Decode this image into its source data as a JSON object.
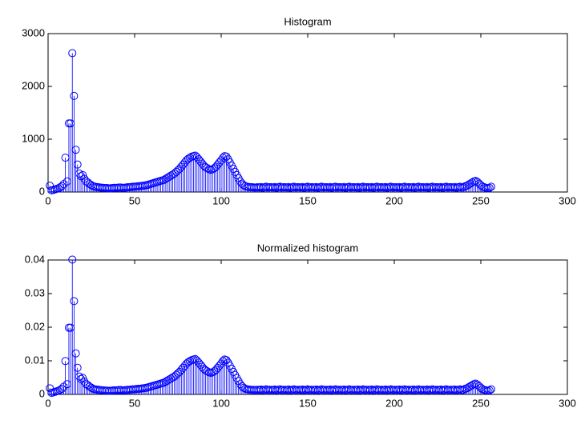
{
  "chart_data": [
    {
      "type": "stem",
      "title": "Histogram",
      "color": "#0000ff",
      "xlim": [
        0,
        300
      ],
      "ylim": [
        0,
        3000
      ],
      "xticks": [
        0,
        50,
        100,
        150,
        200,
        250,
        300
      ],
      "yticks": [
        0,
        1000,
        2000,
        3000
      ],
      "x": [
        1,
        2,
        3,
        4,
        5,
        6,
        7,
        8,
        9,
        10,
        11,
        12,
        13,
        14,
        15,
        16,
        17,
        18,
        19,
        20,
        21,
        22,
        23,
        24,
        25,
        26,
        27,
        28,
        29,
        30,
        31,
        32,
        33,
        34,
        35,
        36,
        37,
        38,
        39,
        40,
        41,
        42,
        43,
        44,
        45,
        46,
        47,
        48,
        49,
        50,
        51,
        52,
        53,
        54,
        55,
        56,
        57,
        58,
        59,
        60,
        61,
        62,
        63,
        64,
        65,
        66,
        67,
        68,
        69,
        70,
        71,
        72,
        73,
        74,
        75,
        76,
        77,
        78,
        79,
        80,
        81,
        82,
        83,
        84,
        85,
        86,
        87,
        88,
        89,
        90,
        91,
        92,
        93,
        94,
        95,
        96,
        97,
        98,
        99,
        100,
        101,
        102,
        103,
        104,
        105,
        106,
        107,
        108,
        109,
        110,
        111,
        112,
        113,
        114,
        115,
        116,
        117,
        118,
        119,
        120,
        121,
        122,
        123,
        124,
        125,
        126,
        127,
        128,
        129,
        130,
        131,
        132,
        133,
        134,
        135,
        136,
        137,
        138,
        139,
        140,
        141,
        142,
        143,
        144,
        145,
        146,
        147,
        148,
        149,
        150,
        151,
        152,
        153,
        154,
        155,
        156,
        157,
        158,
        159,
        160,
        161,
        162,
        163,
        164,
        165,
        166,
        167,
        168,
        169,
        170,
        171,
        172,
        173,
        174,
        175,
        176,
        177,
        178,
        179,
        180,
        181,
        182,
        183,
        184,
        185,
        186,
        187,
        188,
        189,
        190,
        191,
        192,
        193,
        194,
        195,
        196,
        197,
        198,
        199,
        200,
        201,
        202,
        203,
        204,
        205,
        206,
        207,
        208,
        209,
        210,
        211,
        212,
        213,
        214,
        215,
        216,
        217,
        218,
        219,
        220,
        221,
        222,
        223,
        224,
        225,
        226,
        227,
        228,
        229,
        230,
        231,
        232,
        233,
        234,
        235,
        236,
        237,
        238,
        239,
        240,
        241,
        242,
        243,
        244,
        245,
        246,
        247,
        248,
        249,
        250,
        251,
        252,
        253,
        254,
        255,
        256
      ],
      "values": [
        120,
        30,
        40,
        50,
        60,
        70,
        90,
        110,
        150,
        650,
        200,
        1300,
        1300,
        2630,
        1820,
        800,
        520,
        350,
        300,
        320,
        250,
        200,
        180,
        150,
        130,
        110,
        100,
        95,
        90,
        85,
        80,
        80,
        75,
        75,
        70,
        70,
        75,
        80,
        80,
        80,
        85,
        85,
        80,
        80,
        85,
        90,
        90,
        95,
        100,
        100,
        105,
        110,
        110,
        115,
        120,
        125,
        130,
        140,
        150,
        160,
        170,
        180,
        190,
        200,
        210,
        220,
        230,
        250,
        270,
        290,
        310,
        330,
        350,
        380,
        410,
        440,
        480,
        520,
        560,
        600,
        630,
        650,
        670,
        680,
        690,
        660,
        620,
        580,
        540,
        500,
        470,
        450,
        430,
        420,
        430,
        450,
        480,
        520,
        560,
        600,
        650,
        680,
        670,
        620,
        560,
        500,
        440,
        380,
        320,
        260,
        200,
        160,
        130,
        110,
        100,
        95,
        90,
        90,
        85,
        85,
        90,
        85,
        95,
        80,
        90,
        100,
        85,
        90,
        90,
        85,
        95,
        80,
        90,
        100,
        85,
        90,
        90,
        85,
        95,
        80,
        90,
        100,
        85,
        90,
        90,
        85,
        95,
        80,
        90,
        100,
        85,
        90,
        90,
        85,
        95,
        80,
        90,
        100,
        85,
        90,
        90,
        85,
        95,
        80,
        90,
        100,
        85,
        90,
        90,
        85,
        95,
        80,
        90,
        100,
        85,
        90,
        90,
        85,
        95,
        80,
        90,
        100,
        85,
        90,
        90,
        85,
        95,
        80,
        90,
        100,
        85,
        90,
        90,
        85,
        95,
        80,
        90,
        100,
        85,
        90,
        90,
        85,
        95,
        80,
        90,
        100,
        85,
        90,
        90,
        85,
        95,
        80,
        90,
        100,
        85,
        90,
        90,
        85,
        95,
        80,
        90,
        100,
        85,
        90,
        90,
        85,
        95,
        80,
        90,
        100,
        85,
        90,
        90,
        85,
        95,
        80,
        90,
        100,
        85,
        90,
        110,
        120,
        140,
        160,
        180,
        200,
        210,
        190,
        160,
        130,
        100,
        90,
        80,
        70,
        80,
        100
      ]
    },
    {
      "type": "stem",
      "title": "Normalized histogram",
      "color": "#0000ff",
      "xlim": [
        0,
        300
      ],
      "ylim": [
        0,
        0.04
      ],
      "xticks": [
        0,
        50,
        100,
        150,
        200,
        250,
        300
      ],
      "yticks": [
        0,
        0.01,
        0.02,
        0.03,
        0.04
      ],
      "x": [
        1,
        2,
        3,
        4,
        5,
        6,
        7,
        8,
        9,
        10,
        11,
        12,
        13,
        14,
        15,
        16,
        17,
        18,
        19,
        20,
        21,
        22,
        23,
        24,
        25,
        26,
        27,
        28,
        29,
        30,
        31,
        32,
        33,
        34,
        35,
        36,
        37,
        38,
        39,
        40,
        41,
        42,
        43,
        44,
        45,
        46,
        47,
        48,
        49,
        50,
        51,
        52,
        53,
        54,
        55,
        56,
        57,
        58,
        59,
        60,
        61,
        62,
        63,
        64,
        65,
        66,
        67,
        68,
        69,
        70,
        71,
        72,
        73,
        74,
        75,
        76,
        77,
        78,
        79,
        80,
        81,
        82,
        83,
        84,
        85,
        86,
        87,
        88,
        89,
        90,
        91,
        92,
        93,
        94,
        95,
        96,
        97,
        98,
        99,
        100,
        101,
        102,
        103,
        104,
        105,
        106,
        107,
        108,
        109,
        110,
        111,
        112,
        113,
        114,
        115,
        116,
        117,
        118,
        119,
        120,
        121,
        122,
        123,
        124,
        125,
        126,
        127,
        128,
        129,
        130,
        131,
        132,
        133,
        134,
        135,
        136,
        137,
        138,
        139,
        140,
        141,
        142,
        143,
        144,
        145,
        146,
        147,
        148,
        149,
        150,
        151,
        152,
        153,
        154,
        155,
        156,
        157,
        158,
        159,
        160,
        161,
        162,
        163,
        164,
        165,
        166,
        167,
        168,
        169,
        170,
        171,
        172,
        173,
        174,
        175,
        176,
        177,
        178,
        179,
        180,
        181,
        182,
        183,
        184,
        185,
        186,
        187,
        188,
        189,
        190,
        191,
        192,
        193,
        194,
        195,
        196,
        197,
        198,
        199,
        200,
        201,
        202,
        203,
        204,
        205,
        206,
        207,
        208,
        209,
        210,
        211,
        212,
        213,
        214,
        215,
        216,
        217,
        218,
        219,
        220,
        221,
        222,
        223,
        224,
        225,
        226,
        227,
        228,
        229,
        230,
        231,
        232,
        233,
        234,
        235,
        236,
        237,
        238,
        239,
        240,
        241,
        242,
        243,
        244,
        245,
        246,
        247,
        248,
        249,
        250,
        251,
        252,
        253,
        254,
        255,
        256
      ],
      "values": [
        0.00183,
        0.00046,
        0.00061,
        0.00076,
        0.00092,
        0.00107,
        0.00137,
        0.00168,
        0.00229,
        0.00992,
        0.00305,
        0.01984,
        0.01984,
        0.04013,
        0.02777,
        0.01221,
        0.00793,
        0.00534,
        0.00458,
        0.00488,
        0.00381,
        0.00305,
        0.00275,
        0.00229,
        0.00198,
        0.00168,
        0.00153,
        0.00145,
        0.00137,
        0.0013,
        0.00122,
        0.00122,
        0.00114,
        0.00114,
        0.00107,
        0.00107,
        0.00114,
        0.00122,
        0.00122,
        0.00122,
        0.0013,
        0.0013,
        0.00122,
        0.00122,
        0.0013,
        0.00137,
        0.00137,
        0.00145,
        0.00153,
        0.00153,
        0.0016,
        0.00168,
        0.00168,
        0.00175,
        0.00183,
        0.00191,
        0.00198,
        0.00214,
        0.00229,
        0.00244,
        0.00259,
        0.00275,
        0.0029,
        0.00305,
        0.0032,
        0.00336,
        0.00351,
        0.00381,
        0.00412,
        0.00443,
        0.00473,
        0.00504,
        0.00534,
        0.0058,
        0.00626,
        0.00671,
        0.00732,
        0.00793,
        0.00854,
        0.00916,
        0.00961,
        0.00992,
        0.01022,
        0.01038,
        0.01053,
        0.01007,
        0.00946,
        0.00885,
        0.00824,
        0.00763,
        0.00717,
        0.00687,
        0.00656,
        0.00641,
        0.00656,
        0.00687,
        0.00732,
        0.00793,
        0.00854,
        0.00916,
        0.00992,
        0.01038,
        0.01022,
        0.00946,
        0.00854,
        0.00763,
        0.00671,
        0.0058,
        0.00488,
        0.00397,
        0.00305,
        0.00244,
        0.00198,
        0.00168,
        0.00153,
        0.00145,
        0.00137,
        0.00137,
        0.0013,
        0.0013,
        0.00137,
        0.0013,
        0.00145,
        0.00122,
        0.00137,
        0.00153,
        0.0013,
        0.00137,
        0.00137,
        0.0013,
        0.00145,
        0.00122,
        0.00137,
        0.00153,
        0.0013,
        0.00137,
        0.00137,
        0.0013,
        0.00145,
        0.00122,
        0.00137,
        0.00153,
        0.0013,
        0.00137,
        0.00137,
        0.0013,
        0.00145,
        0.00122,
        0.00137,
        0.00153,
        0.0013,
        0.00137,
        0.00137,
        0.0013,
        0.00145,
        0.00122,
        0.00137,
        0.00153,
        0.0013,
        0.00137,
        0.00137,
        0.0013,
        0.00145,
        0.00122,
        0.00137,
        0.00153,
        0.0013,
        0.00137,
        0.00137,
        0.0013,
        0.00145,
        0.00122,
        0.00137,
        0.00153,
        0.0013,
        0.00137,
        0.00137,
        0.0013,
        0.00145,
        0.00122,
        0.00137,
        0.00153,
        0.0013,
        0.00137,
        0.00137,
        0.0013,
        0.00145,
        0.00122,
        0.00137,
        0.00153,
        0.0013,
        0.00137,
        0.00137,
        0.0013,
        0.00145,
        0.00122,
        0.00137,
        0.00153,
        0.0013,
        0.00137,
        0.00137,
        0.0013,
        0.00145,
        0.00122,
        0.00137,
        0.00153,
        0.0013,
        0.00137,
        0.00137,
        0.0013,
        0.00145,
        0.00122,
        0.00137,
        0.00153,
        0.0013,
        0.00137,
        0.00137,
        0.0013,
        0.00145,
        0.00122,
        0.00137,
        0.00153,
        0.0013,
        0.00137,
        0.00137,
        0.0013,
        0.00145,
        0.00122,
        0.00137,
        0.00153,
        0.0013,
        0.00137,
        0.00137,
        0.0013,
        0.00145,
        0.00122,
        0.00137,
        0.00153,
        0.0013,
        0.00137,
        0.00168,
        0.00183,
        0.00214,
        0.00244,
        0.00275,
        0.00305,
        0.0032,
        0.0029,
        0.00244,
        0.00198,
        0.00153,
        0.00137,
        0.00122,
        0.00107,
        0.00122,
        0.00153
      ]
    }
  ]
}
